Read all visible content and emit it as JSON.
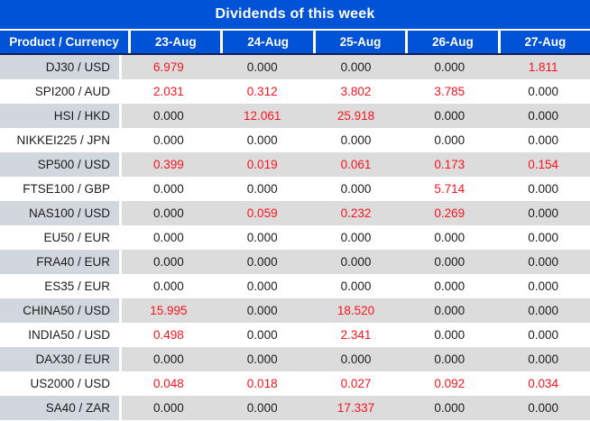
{
  "title": "Dividends of this week",
  "columns": [
    "Product / Currency",
    "23-Aug",
    "24-Aug",
    "25-Aug",
    "26-Aug",
    "27-Aug"
  ],
  "colors": {
    "header_blue": "#0052d6",
    "header_border": "#0d2057",
    "row_gray": "#dcdcdc",
    "row_gray_product": "#d2d6dd",
    "negative_red": "#f9141d",
    "text_dark": "#1c1c1c"
  },
  "rows": [
    {
      "product": "DJ30 / USD",
      "values": [
        "6.979",
        "0.000",
        "0.000",
        "0.000",
        "1.811"
      ],
      "red": [
        true,
        false,
        false,
        false,
        true
      ]
    },
    {
      "product": "SPI200 / AUD",
      "values": [
        "2.031",
        "0.312",
        "3.802",
        "3.785",
        "0.000"
      ],
      "red": [
        true,
        true,
        true,
        true,
        false
      ]
    },
    {
      "product": "HSI / HKD",
      "values": [
        "0.000",
        "12.061",
        "25.918",
        "0.000",
        "0.000"
      ],
      "red": [
        false,
        true,
        true,
        false,
        false
      ]
    },
    {
      "product": "NIKKEI225 / JPN",
      "values": [
        "0.000",
        "0.000",
        "0.000",
        "0.000",
        "0.000"
      ],
      "red": [
        false,
        false,
        false,
        false,
        false
      ]
    },
    {
      "product": "SP500 / USD",
      "values": [
        "0.399",
        "0.019",
        "0.061",
        "0.173",
        "0.154"
      ],
      "red": [
        true,
        true,
        true,
        true,
        true
      ]
    },
    {
      "product": "FTSE100 / GBP",
      "values": [
        "0.000",
        "0.000",
        "0.000",
        "5.714",
        "0.000"
      ],
      "red": [
        false,
        false,
        false,
        true,
        false
      ]
    },
    {
      "product": "NAS100 / USD",
      "values": [
        "0.000",
        "0.059",
        "0.232",
        "0.269",
        "0.000"
      ],
      "red": [
        false,
        true,
        true,
        true,
        false
      ]
    },
    {
      "product": "EU50 / EUR",
      "values": [
        "0.000",
        "0.000",
        "0.000",
        "0.000",
        "0.000"
      ],
      "red": [
        false,
        false,
        false,
        false,
        false
      ]
    },
    {
      "product": "FRA40 / EUR",
      "values": [
        "0.000",
        "0.000",
        "0.000",
        "0.000",
        "0.000"
      ],
      "red": [
        false,
        false,
        false,
        false,
        false
      ]
    },
    {
      "product": "ES35 / EUR",
      "values": [
        "0.000",
        "0.000",
        "0.000",
        "0.000",
        "0.000"
      ],
      "red": [
        false,
        false,
        false,
        false,
        false
      ]
    },
    {
      "product": "CHINA50 / USD",
      "values": [
        "15.995",
        "0.000",
        "18.520",
        "0.000",
        "0.000"
      ],
      "red": [
        true,
        false,
        true,
        false,
        false
      ]
    },
    {
      "product": "INDIA50 / USD",
      "values": [
        "0.498",
        "0.000",
        "2.341",
        "0.000",
        "0.000"
      ],
      "red": [
        true,
        false,
        true,
        false,
        false
      ]
    },
    {
      "product": "DAX30 / EUR",
      "values": [
        "0.000",
        "0.000",
        "0.000",
        "0.000",
        "0.000"
      ],
      "red": [
        false,
        false,
        false,
        false,
        false
      ]
    },
    {
      "product": "US2000 / USD",
      "values": [
        "0.048",
        "0.018",
        "0.027",
        "0.092",
        "0.034"
      ],
      "red": [
        true,
        true,
        true,
        true,
        true
      ]
    },
    {
      "product": "SA40 / ZAR",
      "values": [
        "0.000",
        "0.000",
        "17.337",
        "0.000",
        "0.000"
      ],
      "red": [
        false,
        false,
        true,
        false,
        false
      ]
    }
  ]
}
